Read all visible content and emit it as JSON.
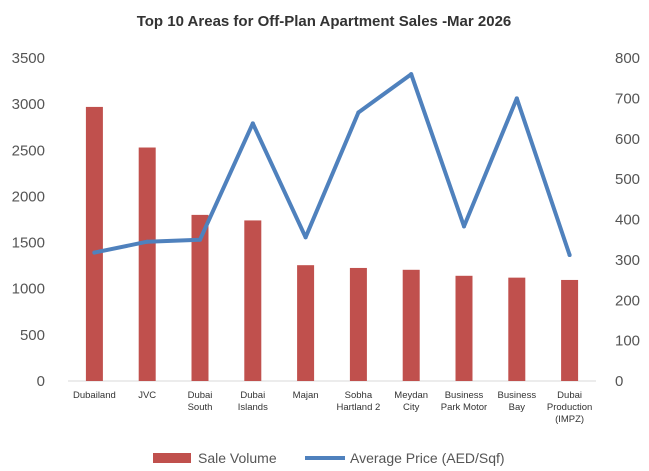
{
  "chart_data": {
    "type": "bar",
    "title": "Top 10 Areas for Off-Plan Apartment Sales -Mar 2026",
    "categories": [
      [
        "Dubailand"
      ],
      [
        "JVC"
      ],
      [
        "Dubai",
        "South"
      ],
      [
        "Dubai",
        "Islands"
      ],
      [
        "Majan"
      ],
      [
        "Sobha",
        "Hartland 2"
      ],
      [
        "Meydan",
        "City"
      ],
      [
        "Business",
        "Park Motor"
      ],
      [
        "Business",
        "Bay"
      ],
      [
        "Dubai",
        "Production",
        "(IMPZ)"
      ]
    ],
    "series": [
      {
        "name": "Sale Volume",
        "type": "bar",
        "axis": "left",
        "color": "#c0504d",
        "values": [
          2970,
          2530,
          1800,
          1740,
          1255,
          1225,
          1205,
          1140,
          1120,
          1095
        ]
      },
      {
        "name": "Average Price (AED/Sqf)",
        "type": "line",
        "axis": "right",
        "color": "#4f81bd",
        "values": [
          318,
          345,
          350,
          638,
          356,
          665,
          760,
          383,
          700,
          312
        ]
      }
    ],
    "y_left": {
      "min": 0,
      "max": 3500,
      "step": 500
    },
    "y_right": {
      "min": 0,
      "max": 800,
      "step": 100
    },
    "grid": false,
    "legend_position": "bottom"
  }
}
